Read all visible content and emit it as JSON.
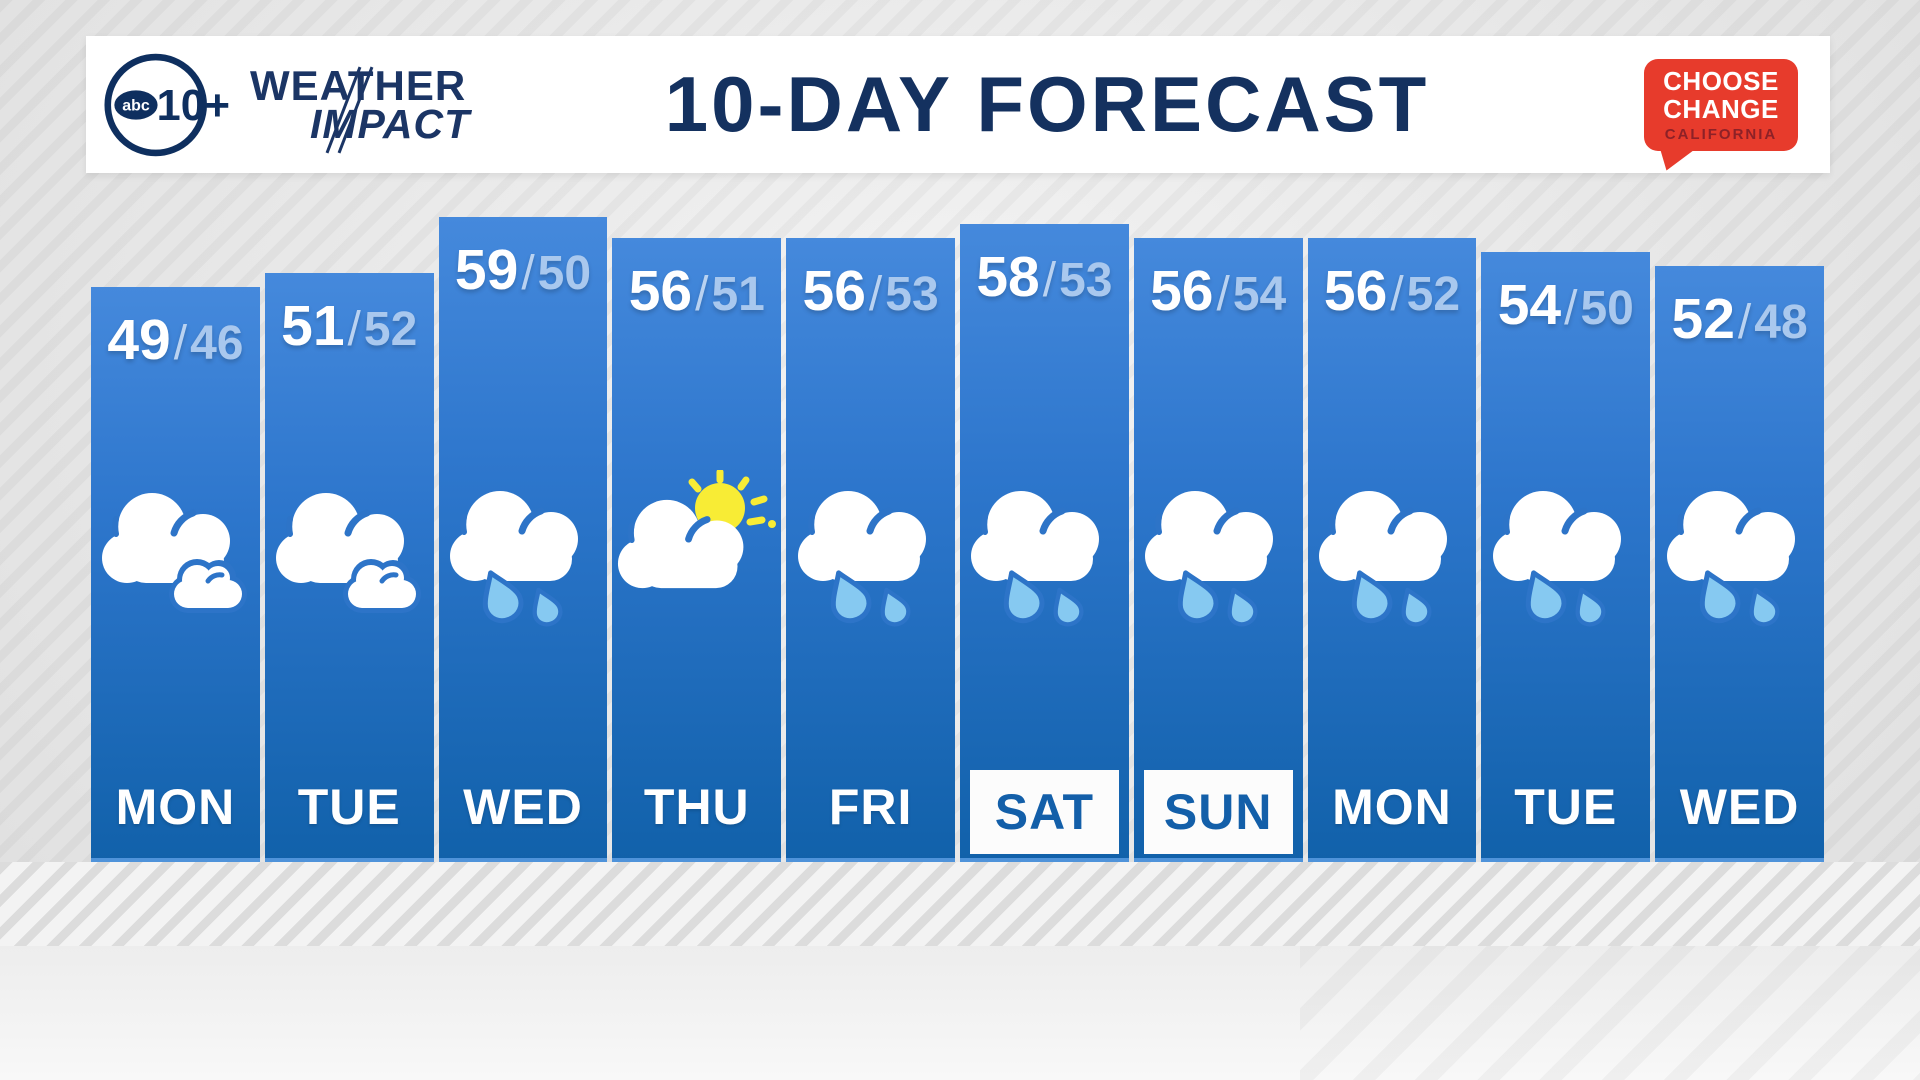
{
  "header": {
    "station": {
      "abc": "abc",
      "ten": "10+"
    },
    "brand": {
      "weather": "WEATHER",
      "impact": "IMPACT"
    },
    "title": "10-DAY FORECAST",
    "badge": {
      "choose": "CHOOSE",
      "change": "CHANGE",
      "california": "CALIFORNIA"
    }
  },
  "forecast": {
    "separator": "/",
    "days": [
      {
        "label": "MON",
        "high": 49,
        "low": 46,
        "icon": "cloudy",
        "highlighted": false
      },
      {
        "label": "TUE",
        "high": 51,
        "low": 52,
        "icon": "cloudy",
        "highlighted": false
      },
      {
        "label": "WED",
        "high": 59,
        "low": 50,
        "icon": "rain",
        "highlighted": false
      },
      {
        "label": "THU",
        "high": 56,
        "low": 51,
        "icon": "partly-sunny",
        "highlighted": false
      },
      {
        "label": "FRI",
        "high": 56,
        "low": 53,
        "icon": "rain",
        "highlighted": false
      },
      {
        "label": "SAT",
        "high": 58,
        "low": 53,
        "icon": "rain",
        "highlighted": true
      },
      {
        "label": "SUN",
        "high": 56,
        "low": 54,
        "icon": "rain",
        "highlighted": true
      },
      {
        "label": "MON",
        "high": 56,
        "low": 52,
        "icon": "rain",
        "highlighted": false
      },
      {
        "label": "TUE",
        "high": 54,
        "low": 50,
        "icon": "rain",
        "highlighted": false
      },
      {
        "label": "WED",
        "high": 52,
        "low": 48,
        "icon": "rain",
        "highlighted": false
      }
    ]
  },
  "chart_data": {
    "type": "bar",
    "title": "10-DAY FORECAST",
    "categories": [
      "MON",
      "TUE",
      "WED",
      "THU",
      "FRI",
      "SAT",
      "SUN",
      "MON",
      "TUE",
      "WED"
    ],
    "series": [
      {
        "name": "high",
        "values": [
          49,
          51,
          59,
          56,
          56,
          58,
          56,
          56,
          54,
          52
        ]
      },
      {
        "name": "low",
        "values": [
          46,
          52,
          50,
          51,
          53,
          53,
          54,
          52,
          50,
          48
        ]
      }
    ],
    "conditions": [
      "cloudy",
      "cloudy",
      "rain",
      "partly-sunny",
      "rain",
      "rain",
      "rain",
      "rain",
      "rain",
      "rain"
    ],
    "highlighted_days": [
      "SAT",
      "SUN"
    ],
    "bar_encoding": "bar height proportional to high temperature",
    "legend_position": "none",
    "grid": false
  },
  "colors": {
    "bar_top": "#4589dc",
    "bar_bottom": "#1161aa",
    "navy": "#14315f",
    "badge_red": "#e73b2c",
    "badge_dark_red": "#8d2127",
    "low_temp_text": "#a9c8ee",
    "rain_drop": "#86c9f1",
    "sun_yellow": "#f8ec35",
    "highlight_day_text": "#135fa9",
    "header_bg": "#ffffff",
    "background": "#e9e9e9"
  }
}
